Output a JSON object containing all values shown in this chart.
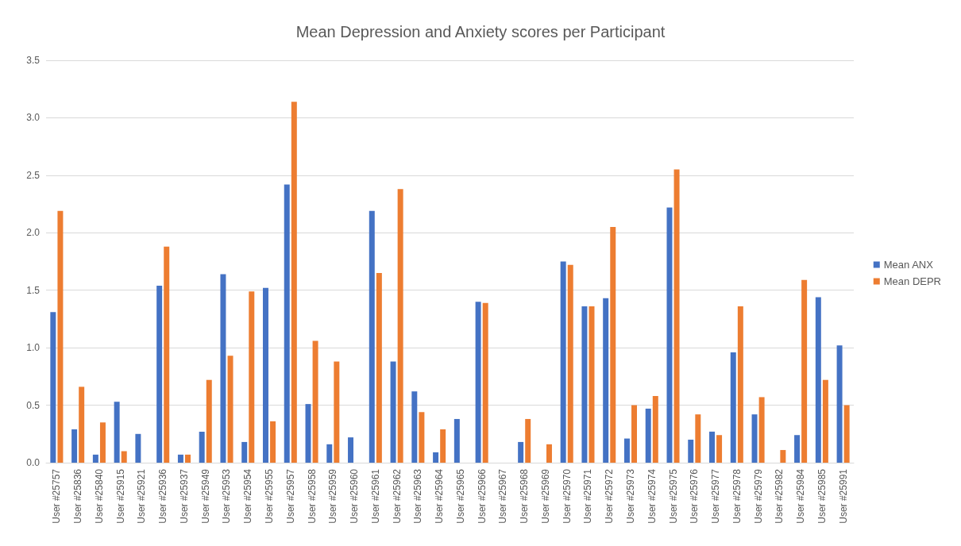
{
  "chart_data": {
    "type": "bar",
    "title": "Mean Depression and Anxiety scores per Participant",
    "categories": [
      "User #25757",
      "User #25836",
      "User #25840",
      "User #25915",
      "User #25921",
      "User #25936",
      "User #25937",
      "User #25949",
      "User #25953",
      "User #25954",
      "User #25955",
      "User #25957",
      "User #25958",
      "User #25959",
      "User #25960",
      "User #25961",
      "User #25962",
      "User #25963",
      "User #25964",
      "User #25965",
      "User #25966",
      "User #25967",
      "User #25968",
      "User #25969",
      "User #25970",
      "User #25971",
      "User #25972",
      "User #25973",
      "User #25974",
      "User #25975",
      "User #25976",
      "User #25977",
      "User #25978",
      "User #25979",
      "User #25982",
      "User #25984",
      "User #25985",
      "User #25991"
    ],
    "series": [
      {
        "name": "Mean ANX",
        "color": "#4472c4",
        "values": [
          1.31,
          0.29,
          0.07,
          0.53,
          0.25,
          1.54,
          0.07,
          0.27,
          1.64,
          0.18,
          1.52,
          2.42,
          0.51,
          0.16,
          0.22,
          2.19,
          0.88,
          0.62,
          0.09,
          0.38,
          1.4,
          0,
          0.18,
          0,
          1.75,
          1.36,
          1.43,
          0.21,
          0.47,
          2.22,
          0.2,
          0.27,
          0.96,
          0.42,
          0,
          0.24,
          1.44,
          1.02
        ]
      },
      {
        "name": "Mean DEPR",
        "color": "#ed7d31",
        "values": [
          2.19,
          0.66,
          0.35,
          0.1,
          0,
          1.88,
          0.07,
          0.72,
          0.93,
          1.49,
          0.36,
          3.14,
          1.06,
          0.88,
          0,
          1.65,
          2.38,
          0.44,
          0.29,
          0,
          1.39,
          0,
          0.38,
          0.16,
          1.72,
          1.36,
          2.05,
          0.5,
          0.58,
          2.55,
          0.42,
          0.24,
          1.36,
          0.57,
          0.11,
          1.59,
          0.72,
          0.5
        ]
      }
    ],
    "ylim": [
      0,
      3.5
    ],
    "yticks": [
      {
        "value": 0,
        "label": "0.0"
      },
      {
        "value": 0.5,
        "label": "0.5"
      },
      {
        "value": 1,
        "label": "1.0"
      },
      {
        "value": 1.5,
        "label": "1.5"
      },
      {
        "value": 2,
        "label": "2.0"
      },
      {
        "value": 2.5,
        "label": "2.5"
      },
      {
        "value": 3,
        "label": "3.0"
      },
      {
        "value": 3.5,
        "label": "3.5"
      }
    ],
    "grid": "y",
    "legend": "right"
  }
}
